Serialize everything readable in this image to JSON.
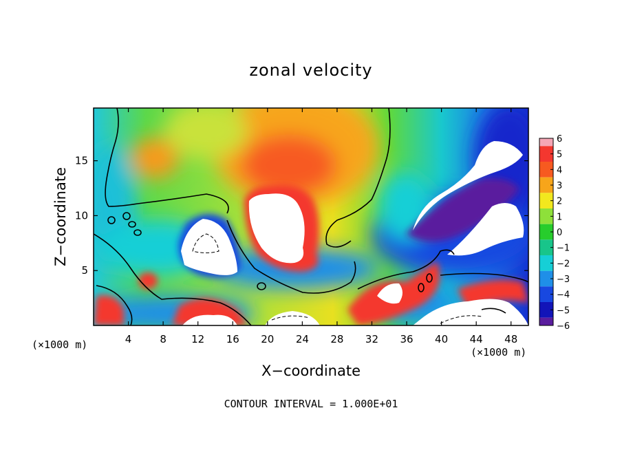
{
  "chart_data": {
    "type": "heatmap",
    "title": "zonal velocity",
    "xlabel": "X−coordinate",
    "ylabel": "Z−coordinate",
    "x_unit_label": "(×1000 m)",
    "xlim": [
      0,
      50
    ],
    "ylim": [
      0,
      19.8
    ],
    "x_ticks": [
      4,
      8,
      12,
      16,
      20,
      24,
      28,
      32,
      36,
      40,
      44,
      48
    ],
    "y_ticks": [
      5,
      10,
      15
    ],
    "colorbar": {
      "ticks": [
        "6",
        "5",
        "4",
        "3",
        "2",
        "1",
        "0",
        "−1",
        "−2",
        "−3",
        "−4",
        "−5",
        "−6"
      ],
      "range": [
        -6,
        6
      ],
      "colors": [
        "#f5a6b5",
        "#f4372f",
        "#f75a20",
        "#f7a51a",
        "#f2e81e",
        "#8ee03a",
        "#27cd2c",
        "#18c58a",
        "#16cfd6",
        "#1f8fe8",
        "#1848e0",
        "#1214b8",
        "#5a1d9e"
      ]
    },
    "footer": "CONTOUR INTERVAL = 1.000E+01",
    "grid": false,
    "legend": "colorbar-right"
  }
}
